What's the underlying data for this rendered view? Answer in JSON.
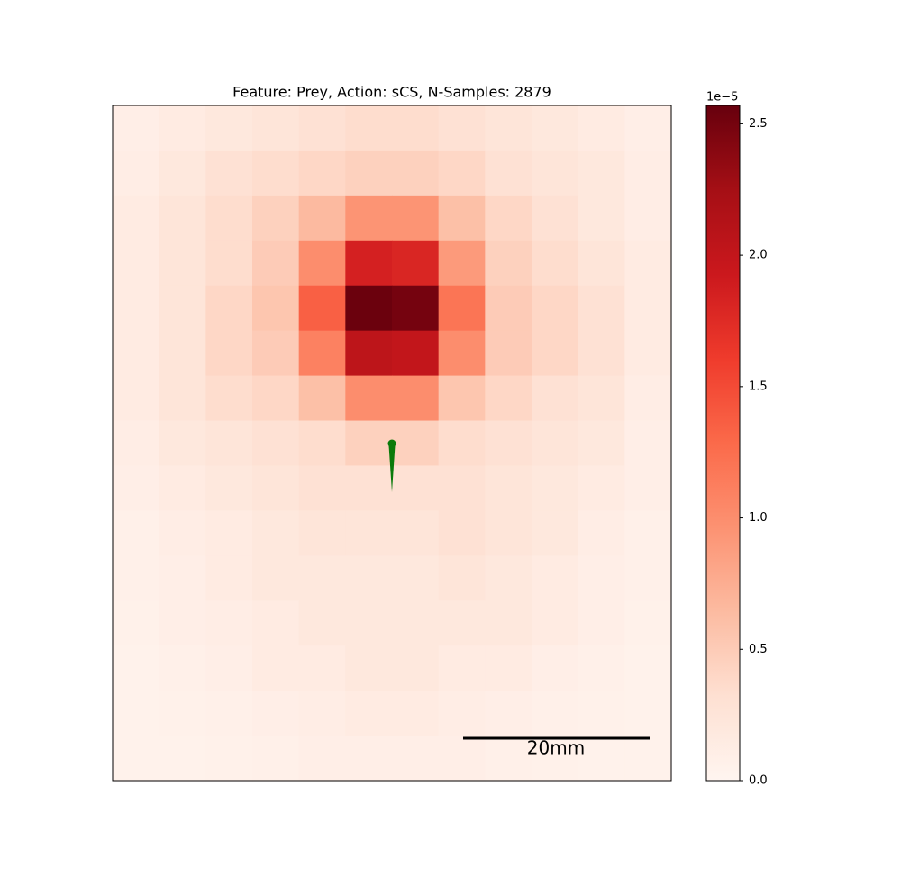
{
  "chart_data": {
    "type": "heatmap",
    "title": "Feature: Prey, Action: sCS, N-Samples: 2879",
    "annotation": "20mm",
    "colorbar_offset_label": "1e−5",
    "colormap": [
      "#fff5f0",
      "#fee0d2",
      "#fcbba1",
      "#fc9272",
      "#fb6a4a",
      "#ef3b2c",
      "#cb181d",
      "#a50f15",
      "#67000d"
    ],
    "clim": [
      0,
      2.57
    ],
    "cticks": [
      {
        "value": 0,
        "label": "0.0"
      },
      0.5,
      {
        "value": 1,
        "label": "1.0"
      },
      1.5,
      {
        "value": 2,
        "label": "2.0"
      },
      2.5
    ],
    "z": [
      [
        0.1,
        0.15,
        0.2,
        0.25,
        0.3,
        0.35,
        0.35,
        0.3,
        0.25,
        0.2,
        0.15,
        0.1
      ],
      [
        0.12,
        0.2,
        0.3,
        0.35,
        0.4,
        0.45,
        0.45,
        0.4,
        0.3,
        0.25,
        0.2,
        0.12
      ],
      [
        0.15,
        0.25,
        0.35,
        0.45,
        0.65,
        0.95,
        0.95,
        0.6,
        0.4,
        0.3,
        0.2,
        0.12
      ],
      [
        0.15,
        0.25,
        0.35,
        0.5,
        1.0,
        1.85,
        1.8,
        0.9,
        0.45,
        0.35,
        0.25,
        0.15
      ],
      [
        0.15,
        0.25,
        0.4,
        0.55,
        1.35,
        2.55,
        2.5,
        1.2,
        0.5,
        0.4,
        0.3,
        0.15
      ],
      [
        0.15,
        0.25,
        0.4,
        0.5,
        1.1,
        2.05,
        2.0,
        1.0,
        0.5,
        0.4,
        0.3,
        0.15
      ],
      [
        0.15,
        0.25,
        0.35,
        0.4,
        0.6,
        1.0,
        1.0,
        0.55,
        0.4,
        0.3,
        0.25,
        0.12
      ],
      [
        0.12,
        0.2,
        0.25,
        0.3,
        0.35,
        0.45,
        0.45,
        0.35,
        0.3,
        0.25,
        0.2,
        0.1
      ],
      [
        0.1,
        0.15,
        0.2,
        0.25,
        0.3,
        0.3,
        0.3,
        0.3,
        0.25,
        0.2,
        0.15,
        0.1
      ],
      [
        0.08,
        0.12,
        0.15,
        0.2,
        0.25,
        0.25,
        0.25,
        0.3,
        0.25,
        0.2,
        0.12,
        0.08
      ],
      [
        0.08,
        0.1,
        0.15,
        0.2,
        0.2,
        0.2,
        0.2,
        0.25,
        0.2,
        0.15,
        0.1,
        0.08
      ],
      [
        0.06,
        0.1,
        0.12,
        0.15,
        0.2,
        0.2,
        0.2,
        0.2,
        0.2,
        0.15,
        0.1,
        0.06
      ],
      [
        0.05,
        0.08,
        0.1,
        0.15,
        0.15,
        0.2,
        0.2,
        0.15,
        0.15,
        0.1,
        0.08,
        0.05
      ],
      [
        0.05,
        0.06,
        0.08,
        0.1,
        0.12,
        0.15,
        0.15,
        0.12,
        0.1,
        0.08,
        0.06,
        0.05
      ],
      [
        0.05,
        0.05,
        0.06,
        0.08,
        0.1,
        0.1,
        0.1,
        0.1,
        0.08,
        0.06,
        0.05,
        0.05
      ]
    ]
  }
}
